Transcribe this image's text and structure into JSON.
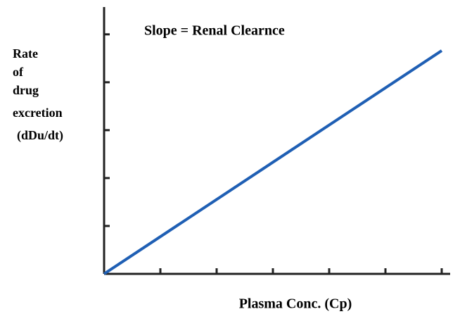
{
  "chart_data": {
    "type": "line",
    "title": "Slope = Renal Clearnce",
    "x_label": "Plasma Conc. (Cp)",
    "y_label": [
      "Rate",
      "of",
      "drug",
      "excretion",
      "(dDu/dt)"
    ],
    "x": [
      0,
      6
    ],
    "series": [
      {
        "color": "#1f5fb4",
        "values": [
          0,
          4.66
        ]
      }
    ],
    "xlim": [
      0,
      6.15
    ],
    "ylim": [
      0,
      5.57
    ],
    "xticks": [
      1,
      2,
      3,
      4,
      5,
      6
    ],
    "yticks": [
      1,
      2,
      3,
      4,
      5
    ],
    "grid": false
  }
}
